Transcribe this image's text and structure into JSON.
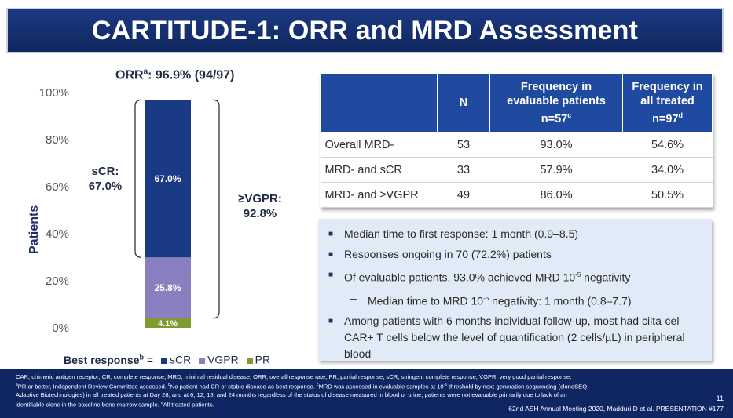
{
  "header": {
    "title": "CARTITUDE-1: ORR and MRD Assessment"
  },
  "orr": {
    "label": "ORR",
    "sup": "a",
    "value": ": 96.9% (94/97)"
  },
  "colors": {
    "sCR": "#1a3a86",
    "VGPR": "#8a7fc0",
    "PR": "#7f9a2f",
    "header_blue": "#1f4aa0",
    "footer_blue": "#0f2663"
  },
  "chart_data": {
    "type": "bar",
    "stacked": true,
    "categories": [
      ""
    ],
    "series": [
      {
        "name": "sCR",
        "values": [
          67.0
        ]
      },
      {
        "name": "VGPR",
        "values": [
          25.8
        ]
      },
      {
        "name": "PR",
        "values": [
          4.1
        ]
      }
    ],
    "data_labels": [
      "67.0%",
      "25.8%",
      "4.1%"
    ],
    "ylabel": "Patients",
    "ylim": [
      0,
      100
    ],
    "yticks": [
      "0%",
      "20%",
      "40%",
      "60%",
      "80%",
      "100%"
    ],
    "annotations": [
      {
        "text_1": "sCR:",
        "text_2": "67.0%"
      },
      {
        "text_1": "≥VGPR:",
        "text_2": "92.8%"
      }
    ],
    "legend": {
      "title": "Best response",
      "title_sup": "b",
      "equals": "=",
      "items": [
        "sCR",
        "VGPR",
        "PR"
      ],
      "position": "bottom"
    }
  },
  "table": {
    "headers": [
      {
        "line1": "",
        "line2": "",
        "line3": ""
      },
      {
        "line1": "N",
        "line2": "",
        "line3": ""
      },
      {
        "line1": "Frequency in",
        "line2": "evaluable patients",
        "line3": "n=57",
        "sup": "c"
      },
      {
        "line1": "Frequency in",
        "line2": "all treated",
        "line3": "n=97",
        "sup": "d"
      }
    ],
    "rows": [
      {
        "label": "Overall MRD-",
        "n": "53",
        "evaluable": "93.0%",
        "all": "54.6%"
      },
      {
        "label": "MRD- and sCR",
        "n": "33",
        "evaluable": "57.9%",
        "all": "34.0%"
      },
      {
        "label": "MRD- and ≥VGPR",
        "n": "49",
        "evaluable": "86.0%",
        "all": "50.5%"
      }
    ]
  },
  "bullets": {
    "b1": "Median time to first response: 1 month (0.9–8.5)",
    "b2": "Responses ongoing in 70 (72.2%) patients",
    "b3_a": "Of evaluable patients, 93.0% achieved MRD 10",
    "b3_sup": "-5",
    "b3_b": " negativity",
    "b4_a": "Median time to MRD 10",
    "b4_sup": "-5",
    "b4_b": " negativity: 1 month (0.8–7.7)",
    "b5": "Among patients with 6 months individual follow-up, most had cilta-cel CAR+ T cells below the level of quantification (2 cells/µL) in peripheral blood"
  },
  "footer": {
    "line1": "CAR, chimeric antigen receptor; CR, complete response; MRD, minimal residual disease; ORR, overall response rate; PR, partial response; sCR, stringent complete response; VGPR, very good partial response.",
    "line2_sup_a": "a",
    "line2_a": "PR or better, Independent Review Committee assessed. ",
    "line2_sup_b": "b",
    "line2_b": "No patient had CR or stable disease as best response. ",
    "line2_sup_c": "c",
    "line2_c": "MRD was assessed in evaluable samples at 10",
    "line2_sup_exp": "-5",
    "line2_d": " threshold by next-generation sequencing (clonoSEQ,",
    "line3": "Adaptive Biotechnologies) in all treated patients at Day 28, and at 6, 12, 18, and 24 months regardless of the status of disease measured in blood or urine; patients were not evaluable primarily due to lack of an",
    "line4_a": "identifiable clone in the baseline bone marrow sample. ",
    "line4_sup": "d",
    "line4_b": "All treated patients.",
    "page_number": "11",
    "conference": "62nd ASH Annual Meeting 2020, Madduri D et al. PRESENTATION #177"
  }
}
